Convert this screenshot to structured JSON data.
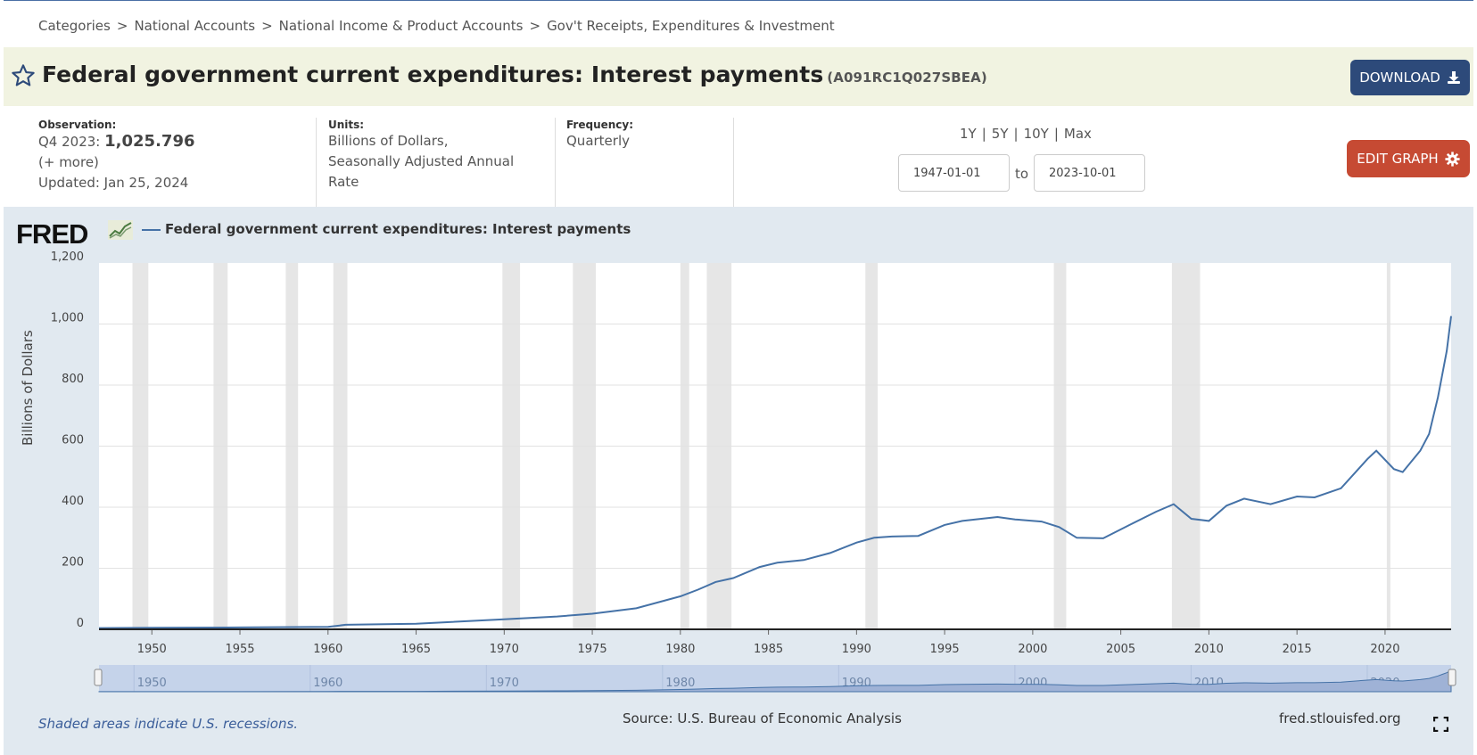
{
  "breadcrumb": [
    "Categories",
    "National Accounts",
    "National Income & Product Accounts",
    "Gov't Receipts, Expenditures & Investment"
  ],
  "breadcrumb_sep": ">",
  "title": "Federal government current expenditures: Interest payments",
  "series_code": "(A091RC1Q027SBEA)",
  "download_label": "DOWNLOAD",
  "edit_graph_label": "EDIT GRAPH",
  "observation": {
    "label": "Observation:",
    "period": "Q4 2023:",
    "value": "1,025.796",
    "more": "(+ more)",
    "updated": "Updated: Jan 25, 2024"
  },
  "units": {
    "label": "Units:",
    "value": "Billions of Dollars, Seasonally Adjusted Annual Rate"
  },
  "frequency": {
    "label": "Frequency:",
    "value": "Quarterly"
  },
  "ranges": [
    "1Y",
    "5Y",
    "10Y",
    "Max"
  ],
  "date_from": "1947-01-01",
  "date_to": "2023-10-01",
  "to_label": "to",
  "logo_text": "FRED",
  "legend_label": "Federal government current expenditures: Interest payments",
  "footer": {
    "note": "Shaded areas indicate U.S. recessions.",
    "source": "Source: U.S. Bureau of Economic Analysis",
    "url": "fred.stlouisfed.org"
  },
  "colors": {
    "line": "#4572a7",
    "download": "#2d4a7a",
    "edit": "#c64a33",
    "title_bg": "#f1f3e1",
    "panel_bg": "#e1e9f0"
  },
  "chart_data": {
    "type": "line",
    "ylabel": "Billions of Dollars",
    "ylim": [
      0,
      1200
    ],
    "yticks": [
      0,
      200,
      400,
      600,
      800,
      1000,
      1200
    ],
    "ytick_labels": [
      "0",
      "200",
      "400",
      "600",
      "800",
      "1,000",
      "1,200"
    ],
    "xlim": [
      1947.0,
      2023.75
    ],
    "xticks": [
      1950,
      1955,
      1960,
      1965,
      1970,
      1975,
      1980,
      1985,
      1990,
      1995,
      2000,
      2005,
      2010,
      2015,
      2020
    ],
    "navigator_ticks": [
      1950,
      1960,
      1970,
      1980,
      1990,
      2000,
      2010,
      2020
    ],
    "grid": true,
    "recessions": [
      [
        1948.9,
        1949.8
      ],
      [
        1953.5,
        1954.3
      ],
      [
        1957.6,
        1958.3
      ],
      [
        1960.3,
        1961.1
      ],
      [
        1969.9,
        1970.9
      ],
      [
        1973.9,
        1975.2
      ],
      [
        1980.0,
        1980.5
      ],
      [
        1981.5,
        1982.9
      ],
      [
        1990.5,
        1991.2
      ],
      [
        2001.2,
        2001.9
      ],
      [
        2007.9,
        2009.5
      ],
      [
        2020.1,
        2020.3
      ]
    ],
    "series": [
      {
        "name": "Federal government current expenditures: Interest payments",
        "x": [
          1947.0,
          1950.0,
          1955.0,
          1960.0,
          1961.0,
          1965.0,
          1970.0,
          1973.0,
          1975.0,
          1977.5,
          1980.0,
          1981.0,
          1982.0,
          1983.0,
          1984.5,
          1985.5,
          1987.0,
          1988.5,
          1990.0,
          1991.0,
          1992.0,
          1993.5,
          1995.0,
          1996.0,
          1998.0,
          1999.0,
          2000.5,
          2001.5,
          2002.5,
          2004.0,
          2005.5,
          2007.0,
          2008.0,
          2009.0,
          2010.0,
          2011.0,
          2012.0,
          2013.5,
          2015.0,
          2016.0,
          2017.5,
          2019.0,
          2019.5,
          2020.5,
          2021.0,
          2022.0,
          2022.5,
          2023.0,
          2023.25,
          2023.5,
          2023.75
        ],
        "y": [
          4,
          5,
          6,
          8,
          15,
          18,
          33,
          42,
          51,
          69,
          108,
          130,
          155,
          168,
          204,
          218,
          227,
          250,
          284,
          300,
          304,
          306,
          342,
          355,
          368,
          360,
          353,
          335,
          300,
          298,
          342,
          385,
          410,
          362,
          355,
          405,
          428,
          410,
          435,
          432,
          462,
          558,
          585,
          525,
          515,
          585,
          640,
          760,
          835,
          912,
          1026
        ]
      }
    ]
  }
}
